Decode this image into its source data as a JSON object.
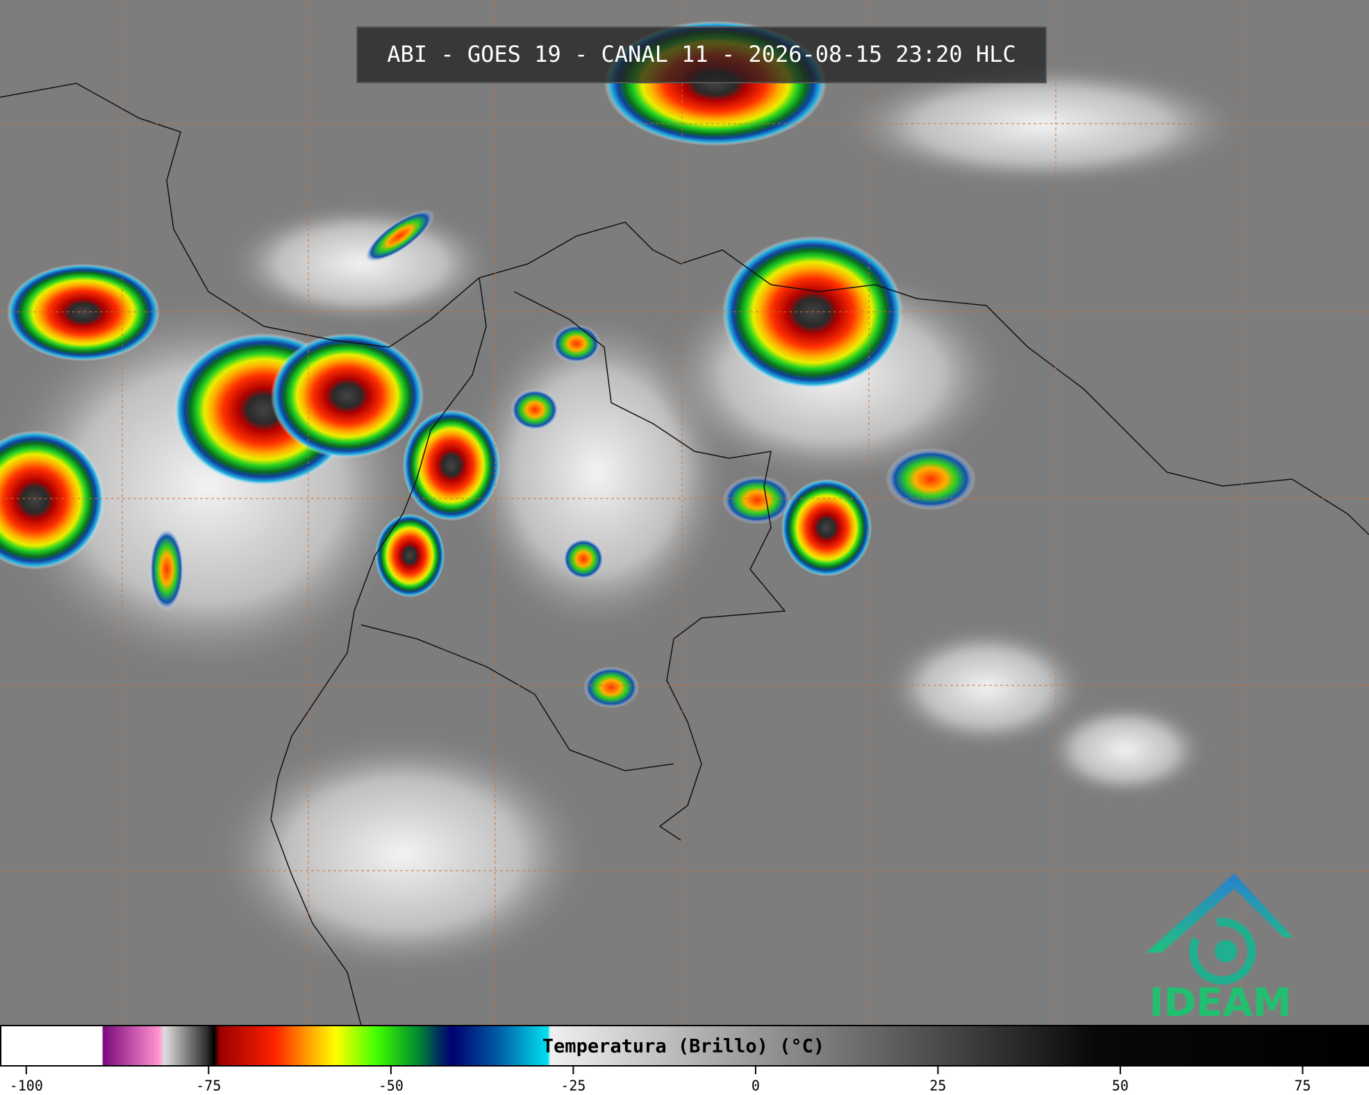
{
  "header": {
    "title": "ABI - GOES 19 - CANAL 11 - 2026-08-15 23:20 HLC"
  },
  "colorbar": {
    "label": "Temperatura (Brillo) (°C)",
    "range": [
      -103.6,
      84.1
    ],
    "ticks": [
      -100,
      -75,
      -50,
      -25,
      0,
      25,
      50,
      75
    ]
  },
  "logo": {
    "text": "IDEAM"
  }
}
